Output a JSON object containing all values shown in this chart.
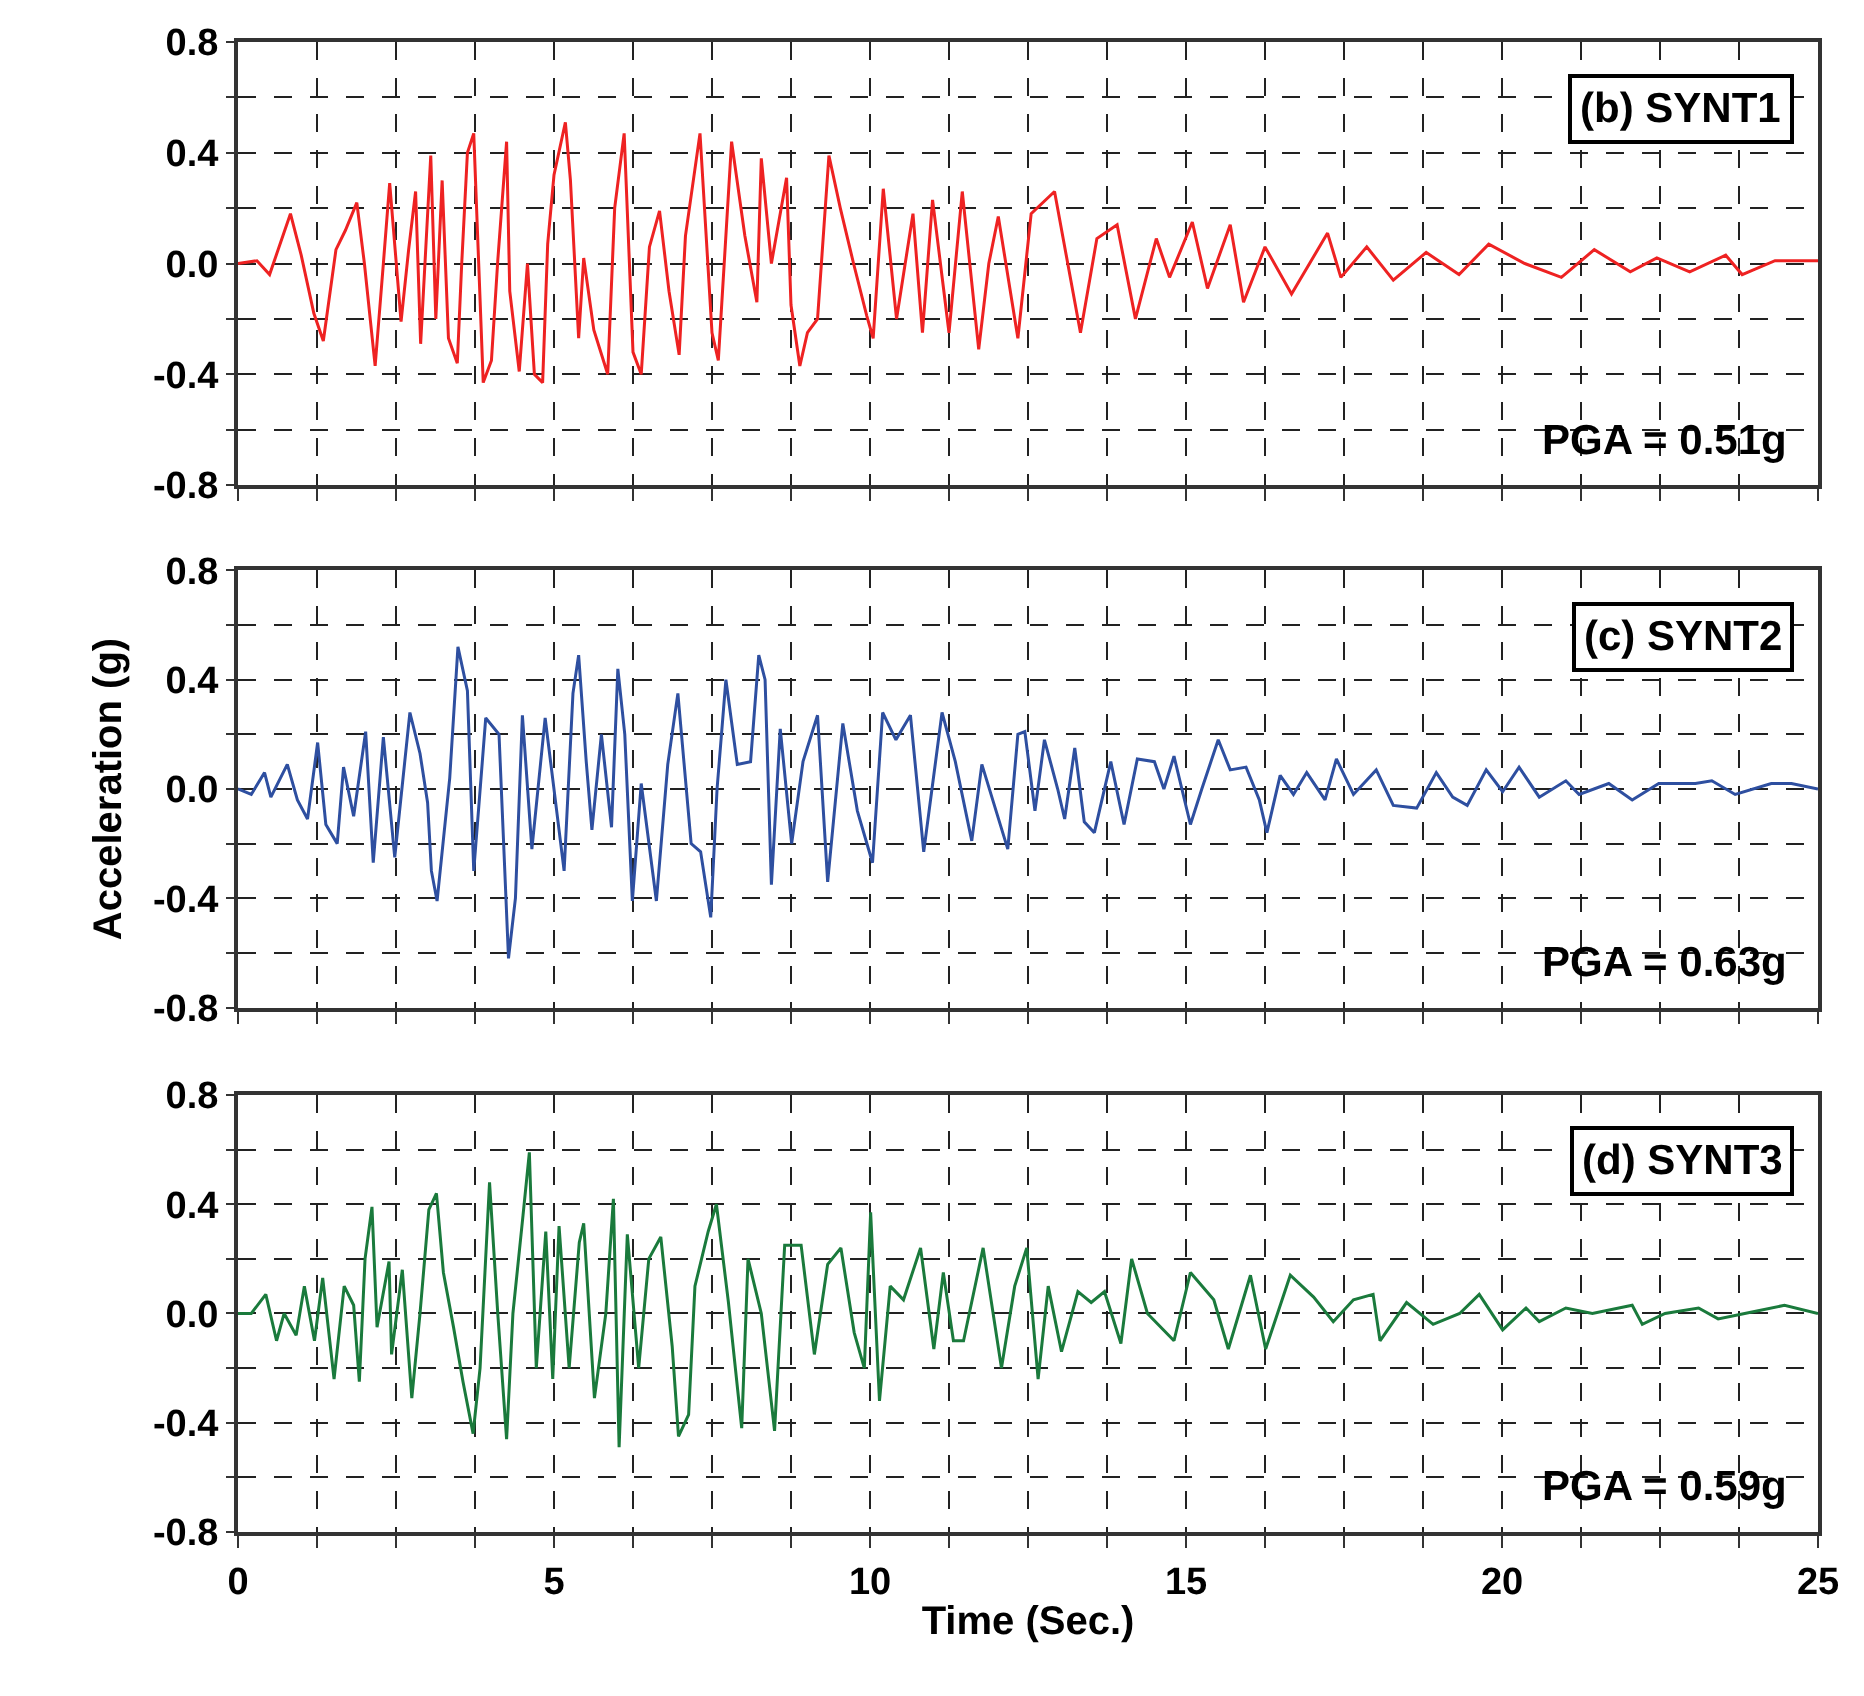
{
  "chart_data": [
    {
      "type": "line",
      "annotations": [
        "(b) SYNT1",
        "PGA = 0.51g"
      ],
      "tick_labels": "y",
      "grid": true,
      "line_style": "solid",
      "xlim": [
        0,
        25
      ],
      "xticks": [
        0,
        {
          "value": 1.25,
          "label": null
        },
        {
          "value": 2.5,
          "label": null
        },
        {
          "value": 3.75,
          "label": null
        },
        5,
        {
          "value": 6.25,
          "label": null
        },
        {
          "value": 7.5,
          "label": null
        },
        {
          "value": 8.75,
          "label": null
        },
        10,
        {
          "value": 11.25,
          "label": null
        },
        {
          "value": 12.5,
          "label": null
        },
        {
          "value": 13.75,
          "label": null
        },
        15,
        {
          "value": 16.25,
          "label": null
        },
        {
          "value": 17.5,
          "label": null
        },
        {
          "value": 18.75,
          "label": null
        },
        20,
        {
          "value": 21.25,
          "label": null
        },
        {
          "value": 22.5,
          "label": null
        },
        {
          "value": 23.75,
          "label": null
        },
        25
      ],
      "ylim": [
        -0.8,
        0.8
      ],
      "yticks": [
        {
          "value": -0.8,
          "label": "-0.8"
        },
        {
          "value": -0.6,
          "label": null
        },
        {
          "value": -0.4,
          "label": "-0.4"
        },
        {
          "value": -0.2,
          "label": null
        },
        {
          "value": 0,
          "label": "0.0"
        },
        {
          "value": 0.2,
          "label": null
        },
        {
          "value": 0.4,
          "label": "0.4"
        },
        {
          "value": 0.6,
          "label": null
        },
        {
          "value": 0.8,
          "label": "0.8"
        }
      ],
      "x": [
        0,
        0.3,
        0.5,
        0.83,
        1.0,
        1.2,
        1.35,
        1.55,
        1.7,
        1.88,
        2.0,
        2.17,
        2.3,
        2.4,
        2.58,
        2.7,
        2.81,
        2.89,
        3.05,
        3.13,
        3.23,
        3.33,
        3.47,
        3.54,
        3.63,
        3.73,
        3.88,
        4.01,
        4.11,
        4.25,
        4.3,
        4.45,
        4.58,
        4.69,
        4.82,
        4.9,
        5.0,
        5.18,
        5.26,
        5.39,
        5.47,
        5.63,
        5.85,
        5.96,
        6.11,
        6.25,
        6.38,
        6.51,
        6.67,
        6.82,
        6.98,
        7.08,
        7.31,
        7.5,
        7.6,
        7.81,
        8.02,
        8.21,
        8.28,
        8.44,
        8.68,
        8.75,
        8.89,
        9.01,
        9.17,
        9.35,
        9.53,
        9.74,
        9.95,
        10.05,
        10.21,
        10.42,
        10.68,
        10.83,
        10.99,
        11.25,
        11.46,
        11.72,
        11.88,
        12.03,
        12.34,
        12.55,
        12.92,
        13.33,
        13.59,
        13.91,
        14.2,
        14.53,
        14.74,
        15.1,
        15.34,
        15.7,
        15.91,
        16.25,
        16.67,
        17.24,
        17.45,
        17.86,
        18.28,
        18.8,
        19.32,
        19.79,
        20.36,
        20.94,
        21.46,
        22.03,
        22.45,
        22.97,
        23.54,
        23.8,
        24.32,
        25
      ],
      "series": [
        {
          "color": "#ee2222",
          "values": [
            0,
            0.01,
            -0.04,
            0.18,
            0.03,
            -0.18,
            -0.28,
            0.05,
            0.12,
            0.22,
            0.0,
            -0.37,
            0.0,
            0.29,
            -0.21,
            0.05,
            0.26,
            -0.29,
            0.39,
            -0.2,
            0.3,
            -0.27,
            -0.36,
            0.0,
            0.4,
            0.47,
            -0.43,
            -0.35,
            0.01,
            0.44,
            -0.1,
            -0.39,
            0.0,
            -0.4,
            -0.43,
            0.07,
            0.32,
            0.51,
            0.3,
            -0.27,
            0.02,
            -0.24,
            -0.4,
            0.2,
            0.47,
            -0.32,
            -0.4,
            0.06,
            0.19,
            -0.1,
            -0.33,
            0.1,
            0.47,
            -0.25,
            -0.35,
            0.44,
            0.1,
            -0.14,
            0.38,
            0.0,
            0.31,
            -0.15,
            -0.37,
            -0.25,
            -0.2,
            0.39,
            0.2,
            0.0,
            -0.19,
            -0.27,
            0.27,
            -0.2,
            0.18,
            -0.25,
            0.23,
            -0.25,
            0.26,
            -0.31,
            0.0,
            0.17,
            -0.27,
            0.18,
            0.26,
            -0.25,
            0.09,
            0.14,
            -0.2,
            0.09,
            -0.05,
            0.15,
            -0.09,
            0.14,
            -0.14,
            0.06,
            -0.11,
            0.11,
            -0.05,
            0.06,
            -0.06,
            0.04,
            -0.04,
            0.07,
            0,
            -0.05,
            0.05,
            -0.03,
            0.02,
            -0.03,
            0.03,
            -0.04,
            0.01,
            0.01
          ]
        }
      ]
    },
    {
      "type": "line",
      "annotations": [
        "(c) SYNT2",
        "PGA = 0.63g"
      ],
      "ylabel": "Acceleration (g)",
      "tick_labels": "y",
      "grid": true,
      "line_style": "solid",
      "xlim": [
        0,
        25
      ],
      "xticks": [
        0,
        {
          "value": 1.25,
          "label": null
        },
        {
          "value": 2.5,
          "label": null
        },
        {
          "value": 3.75,
          "label": null
        },
        5,
        {
          "value": 6.25,
          "label": null
        },
        {
          "value": 7.5,
          "label": null
        },
        {
          "value": 8.75,
          "label": null
        },
        10,
        {
          "value": 11.25,
          "label": null
        },
        {
          "value": 12.5,
          "label": null
        },
        {
          "value": 13.75,
          "label": null
        },
        15,
        {
          "value": 16.25,
          "label": null
        },
        {
          "value": 17.5,
          "label": null
        },
        {
          "value": 18.75,
          "label": null
        },
        20,
        {
          "value": 21.25,
          "label": null
        },
        {
          "value": 22.5,
          "label": null
        },
        {
          "value": 23.75,
          "label": null
        },
        25
      ],
      "ylim": [
        -0.8,
        0.8
      ],
      "yticks": [
        {
          "value": -0.8,
          "label": "-0.8"
        },
        {
          "value": -0.6,
          "label": null
        },
        {
          "value": -0.4,
          "label": "-0.4"
        },
        {
          "value": -0.2,
          "label": null
        },
        {
          "value": 0,
          "label": "0.0"
        },
        {
          "value": 0.2,
          "label": null
        },
        {
          "value": 0.4,
          "label": "0.4"
        },
        {
          "value": 0.6,
          "label": null
        },
        {
          "value": 0.8,
          "label": "0.8"
        }
      ],
      "x": [
        0,
        0.21,
        0.42,
        0.52,
        0.78,
        0.94,
        1.1,
        1.26,
        1.39,
        1.57,
        1.67,
        1.83,
        2.02,
        2.14,
        2.3,
        2.48,
        2.72,
        2.88,
        3.0,
        3.06,
        3.15,
        3.35,
        3.48,
        3.63,
        3.73,
        3.92,
        4.13,
        4.28,
        4.39,
        4.5,
        4.65,
        4.86,
        5.16,
        5.3,
        5.39,
        5.51,
        5.6,
        5.75,
        5.91,
        6.01,
        6.12,
        6.24,
        6.38,
        6.62,
        6.8,
        6.96,
        7.17,
        7.32,
        7.48,
        7.58,
        7.72,
        7.9,
        8.11,
        8.24,
        8.34,
        8.44,
        8.58,
        8.76,
        8.94,
        9.17,
        9.33,
        9.57,
        9.8,
        10.04,
        10.2,
        10.41,
        10.64,
        10.85,
        11.14,
        11.35,
        11.61,
        11.77,
        12.18,
        12.34,
        12.45,
        12.61,
        12.76,
        12.97,
        13.08,
        13.24,
        13.39,
        13.55,
        13.81,
        14.02,
        14.23,
        14.5,
        14.65,
        14.81,
        15.07,
        15.25,
        15.51,
        15.7,
        15.95,
        16.16,
        16.28,
        16.49,
        16.7,
        16.91,
        17.2,
        17.38,
        17.65,
        18.01,
        18.28,
        18.65,
        18.96,
        19.22,
        19.45,
        19.75,
        20.01,
        20.27,
        20.59,
        21.01,
        21.22,
        21.69,
        22.06,
        22.48,
        23.06,
        23.32,
        23.69,
        24.26,
        24.58,
        25
      ],
      "series": [
        {
          "color": "#2e4fa0",
          "values": [
            0,
            -0.02,
            0.06,
            -0.03,
            0.09,
            -0.04,
            -0.11,
            0.17,
            -0.13,
            -0.2,
            0.08,
            -0.1,
            0.21,
            -0.27,
            0.19,
            -0.25,
            0.28,
            0.13,
            -0.05,
            -0.3,
            -0.41,
            0.04,
            0.52,
            0.36,
            -0.3,
            0.26,
            0.2,
            -0.62,
            -0.4,
            0.27,
            -0.22,
            0.26,
            -0.3,
            0.35,
            0.49,
            0.1,
            -0.15,
            0.2,
            -0.14,
            0.44,
            0.2,
            -0.41,
            0.02,
            -0.41,
            0.09,
            0.35,
            -0.2,
            -0.23,
            -0.47,
            0.0,
            0.4,
            0.09,
            0.1,
            0.49,
            0.4,
            -0.35,
            0.22,
            -0.2,
            0.1,
            0.27,
            -0.34,
            0.24,
            -0.08,
            -0.27,
            0.28,
            0.18,
            0.27,
            -0.23,
            0.28,
            0.1,
            -0.19,
            0.09,
            -0.22,
            0.2,
            0.21,
            -0.08,
            0.18,
            0.0,
            -0.11,
            0.15,
            -0.12,
            -0.16,
            0.1,
            -0.13,
            0.11,
            0.1,
            0.0,
            0.12,
            -0.13,
            0.0,
            0.18,
            0.07,
            0.08,
            -0.04,
            -0.16,
            0.05,
            -0.02,
            0.06,
            -0.04,
            0.11,
            -0.02,
            0.07,
            -0.06,
            -0.07,
            0.06,
            -0.03,
            -0.06,
            0.07,
            -0.01,
            0.08,
            -0.03,
            0.03,
            -0.02,
            0.02,
            -0.04,
            0.02,
            0.02,
            0.03,
            -0.02,
            0.02,
            0.02,
            0.0
          ]
        }
      ]
    },
    {
      "type": "line",
      "annotations": [
        "(d) SYNT3",
        "PGA = 0.59g"
      ],
      "xlabel": "Time (Sec.)",
      "grid": true,
      "line_style": "solid",
      "xlim": [
        0,
        25
      ],
      "xticks": [
        0,
        {
          "value": 1.25,
          "label": null
        },
        {
          "value": 2.5,
          "label": null
        },
        {
          "value": 3.75,
          "label": null
        },
        5,
        {
          "value": 6.25,
          "label": null
        },
        {
          "value": 7.5,
          "label": null
        },
        {
          "value": 8.75,
          "label": null
        },
        10,
        {
          "value": 11.25,
          "label": null
        },
        {
          "value": 12.5,
          "label": null
        },
        {
          "value": 13.75,
          "label": null
        },
        15,
        {
          "value": 16.25,
          "label": null
        },
        {
          "value": 17.5,
          "label": null
        },
        {
          "value": 18.75,
          "label": null
        },
        20,
        {
          "value": 21.25,
          "label": null
        },
        {
          "value": 22.5,
          "label": null
        },
        {
          "value": 23.75,
          "label": null
        },
        25
      ],
      "ylim": [
        -0.8,
        0.8
      ],
      "yticks": [
        {
          "value": -0.8,
          "label": "-0.8"
        },
        {
          "value": -0.6,
          "label": null
        },
        {
          "value": -0.4,
          "label": "-0.4"
        },
        {
          "value": -0.2,
          "label": null
        },
        {
          "value": 0,
          "label": "0.0"
        },
        {
          "value": 0.2,
          "label": null
        },
        {
          "value": 0.4,
          "label": "0.4"
        },
        {
          "value": 0.6,
          "label": null
        },
        {
          "value": 0.8,
          "label": "0.8"
        }
      ],
      "x": [
        0,
        0.21,
        0.44,
        0.61,
        0.73,
        0.92,
        1.05,
        1.21,
        1.34,
        1.52,
        1.68,
        1.83,
        1.92,
        2.01,
        2.12,
        2.2,
        2.39,
        2.43,
        2.6,
        2.75,
        2.88,
        3.02,
        3.14,
        3.25,
        3.41,
        3.56,
        3.72,
        3.83,
        3.98,
        4.11,
        4.25,
        4.35,
        4.51,
        4.61,
        4.72,
        4.87,
        4.98,
        5.08,
        5.24,
        5.4,
        5.47,
        5.64,
        5.82,
        5.94,
        6.03,
        6.16,
        6.34,
        6.5,
        6.69,
        6.87,
        6.97,
        7.13,
        7.23,
        7.44,
        7.57,
        7.76,
        7.97,
        8.07,
        8.28,
        8.49,
        8.65,
        8.91,
        9.12,
        9.33,
        9.54,
        9.75,
        9.91,
        10.01,
        10.15,
        10.32,
        10.53,
        10.8,
        11.01,
        11.16,
        11.32,
        11.48,
        11.79,
        12.08,
        12.29,
        12.48,
        12.66,
        12.82,
        13.03,
        13.29,
        13.5,
        13.71,
        13.97,
        14.14,
        14.39,
        14.81,
        15.07,
        15.44,
        15.67,
        16.02,
        16.26,
        16.65,
        17.02,
        17.33,
        17.65,
        17.96,
        18.07,
        18.49,
        18.91,
        19.33,
        19.64,
        20.01,
        20.38,
        20.59,
        21.01,
        21.43,
        22.06,
        22.22,
        22.58,
        23.11,
        23.42,
        23.84,
        24.47,
        25
      ],
      "series": [
        {
          "color": "#1a7a3c",
          "values": [
            0,
            0.0,
            0.07,
            -0.1,
            0.0,
            -0.08,
            0.1,
            -0.1,
            0.13,
            -0.24,
            0.1,
            0.03,
            -0.25,
            0.2,
            0.39,
            -0.05,
            0.19,
            -0.15,
            0.16,
            -0.31,
            0.0,
            0.38,
            0.44,
            0.15,
            -0.05,
            -0.25,
            -0.44,
            -0.2,
            0.48,
            0.0,
            -0.46,
            0.0,
            0.36,
            0.59,
            -0.2,
            0.3,
            -0.24,
            0.32,
            -0.2,
            0.26,
            0.33,
            -0.31,
            0.0,
            0.42,
            -0.49,
            0.29,
            -0.2,
            0.2,
            0.28,
            -0.12,
            -0.45,
            -0.37,
            0.1,
            0.3,
            0.4,
            0.04,
            -0.42,
            0.2,
            0.0,
            -0.43,
            0.25,
            0.25,
            -0.15,
            0.18,
            0.24,
            -0.07,
            -0.2,
            0.37,
            -0.32,
            0.1,
            0.05,
            0.24,
            -0.13,
            0.15,
            -0.1,
            -0.1,
            0.24,
            -0.2,
            0.1,
            0.24,
            -0.24,
            0.1,
            -0.14,
            0.08,
            0.04,
            0.08,
            -0.11,
            0.2,
            0.0,
            -0.1,
            0.15,
            0.05,
            -0.13,
            0.14,
            -0.13,
            0.14,
            0.06,
            -0.03,
            0.05,
            0.07,
            -0.1,
            0.04,
            -0.04,
            0.0,
            0.07,
            -0.06,
            0.02,
            -0.03,
            0.02,
            0.0,
            0.03,
            -0.04,
            0.0,
            0.02,
            -0.02,
            0.0,
            0.03,
            0.0
          ]
        }
      ]
    }
  ]
}
